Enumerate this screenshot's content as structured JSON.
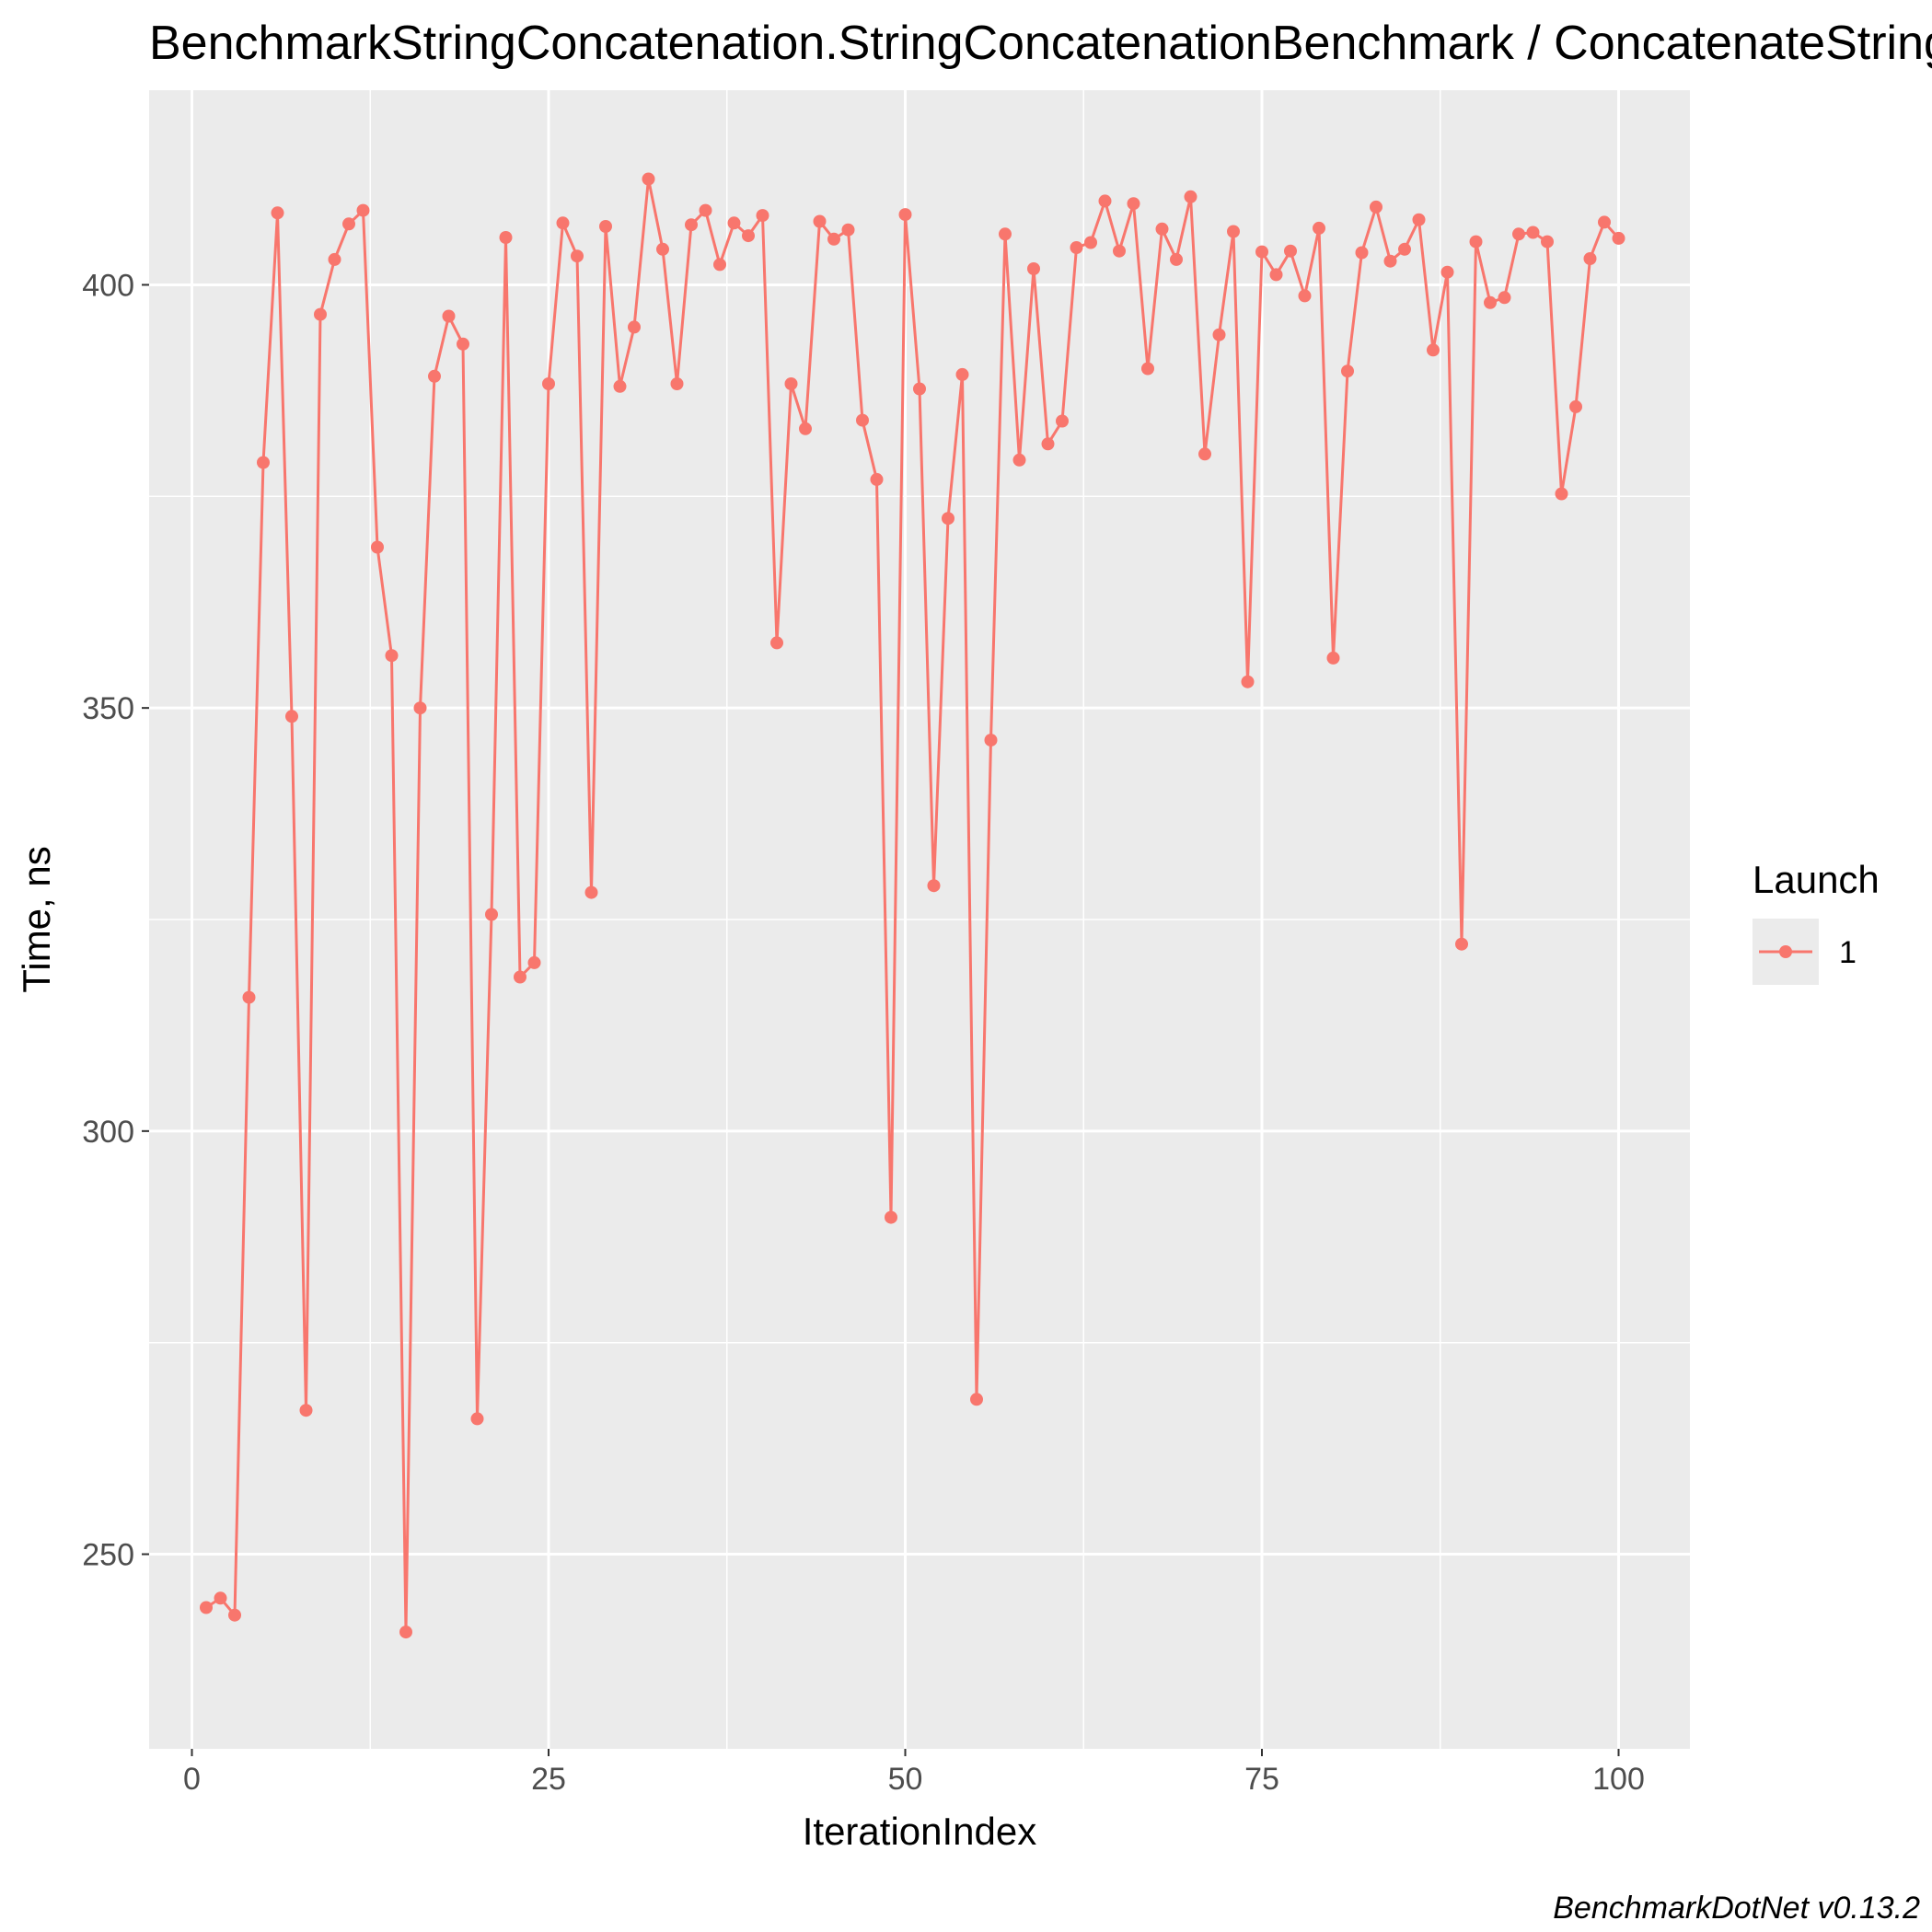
{
  "chart_data": {
    "type": "line",
    "title": "BenchmarkStringConcatenation.StringConcatenationBenchmark / ConcatenateStrings",
    "xlabel": "IterationIndex",
    "ylabel": "Time, ns",
    "xlim": [
      -3,
      105
    ],
    "ylim": [
      227,
      423
    ],
    "x_ticks": [
      0,
      25,
      50,
      75,
      100
    ],
    "y_ticks": [
      250,
      300,
      350,
      400
    ],
    "grid": true,
    "legend": {
      "title": "Launch",
      "position": "right",
      "entries": [
        "1"
      ]
    },
    "caption": "BenchmarkDotNet v0.13.2",
    "colors": {
      "panel": "#ebebeb",
      "grid": "#ffffff",
      "series": "#f8766d"
    },
    "series": [
      {
        "name": "1",
        "x": [
          1,
          2,
          3,
          4,
          5,
          6,
          7,
          8,
          9,
          10,
          11,
          12,
          13,
          14,
          15,
          16,
          17,
          18,
          19,
          20,
          21,
          22,
          23,
          24,
          25,
          26,
          27,
          28,
          29,
          30,
          31,
          32,
          33,
          34,
          35,
          36,
          37,
          38,
          39,
          40,
          41,
          42,
          43,
          44,
          45,
          46,
          47,
          48,
          49,
          50,
          51,
          52,
          53,
          54,
          55,
          56,
          57,
          58,
          59,
          60,
          61,
          62,
          63,
          64,
          65,
          66,
          67,
          68,
          69,
          70,
          71,
          72,
          73,
          74,
          75,
          76,
          77,
          78,
          79,
          80,
          81,
          82,
          83,
          84,
          85,
          86,
          87,
          88,
          89,
          90,
          91,
          92,
          93,
          94,
          95,
          96,
          97,
          98,
          99,
          100
        ],
        "values": [
          243.7,
          244.8,
          242.8,
          315.8,
          379,
          408.5,
          349,
          267,
          396.5,
          403,
          407.2,
          408.8,
          369,
          356.2,
          240.8,
          350,
          389.2,
          396.3,
          393,
          266,
          325.6,
          405.6,
          318.2,
          319.9,
          388.3,
          407.3,
          403.4,
          328.2,
          406.9,
          388,
          395,
          412.5,
          404.2,
          388.3,
          407.1,
          408.8,
          402.4,
          407.3,
          405.8,
          408.2,
          357.7,
          388.3,
          383,
          407.5,
          405.4,
          406.5,
          384,
          377,
          289.8,
          408.3,
          387.7,
          329,
          372.4,
          389.4,
          268.3,
          346.2,
          406,
          379.3,
          401.9,
          381.2,
          383.9,
          404.4,
          405,
          409.9,
          404,
          409.6,
          390.1,
          406.6,
          403,
          410.4,
          380,
          394.1,
          406.3,
          353.1,
          403.9,
          401.2,
          404,
          398.7,
          406.7,
          355.9,
          389.8,
          403.8,
          409.2,
          402.8,
          404.2,
          407.7,
          392.3,
          401.5,
          322.1,
          405.1,
          397.9,
          398.5,
          406,
          406.2,
          405.1,
          375.3,
          385.6,
          403.1,
          407.4,
          405.5
        ]
      }
    ]
  }
}
